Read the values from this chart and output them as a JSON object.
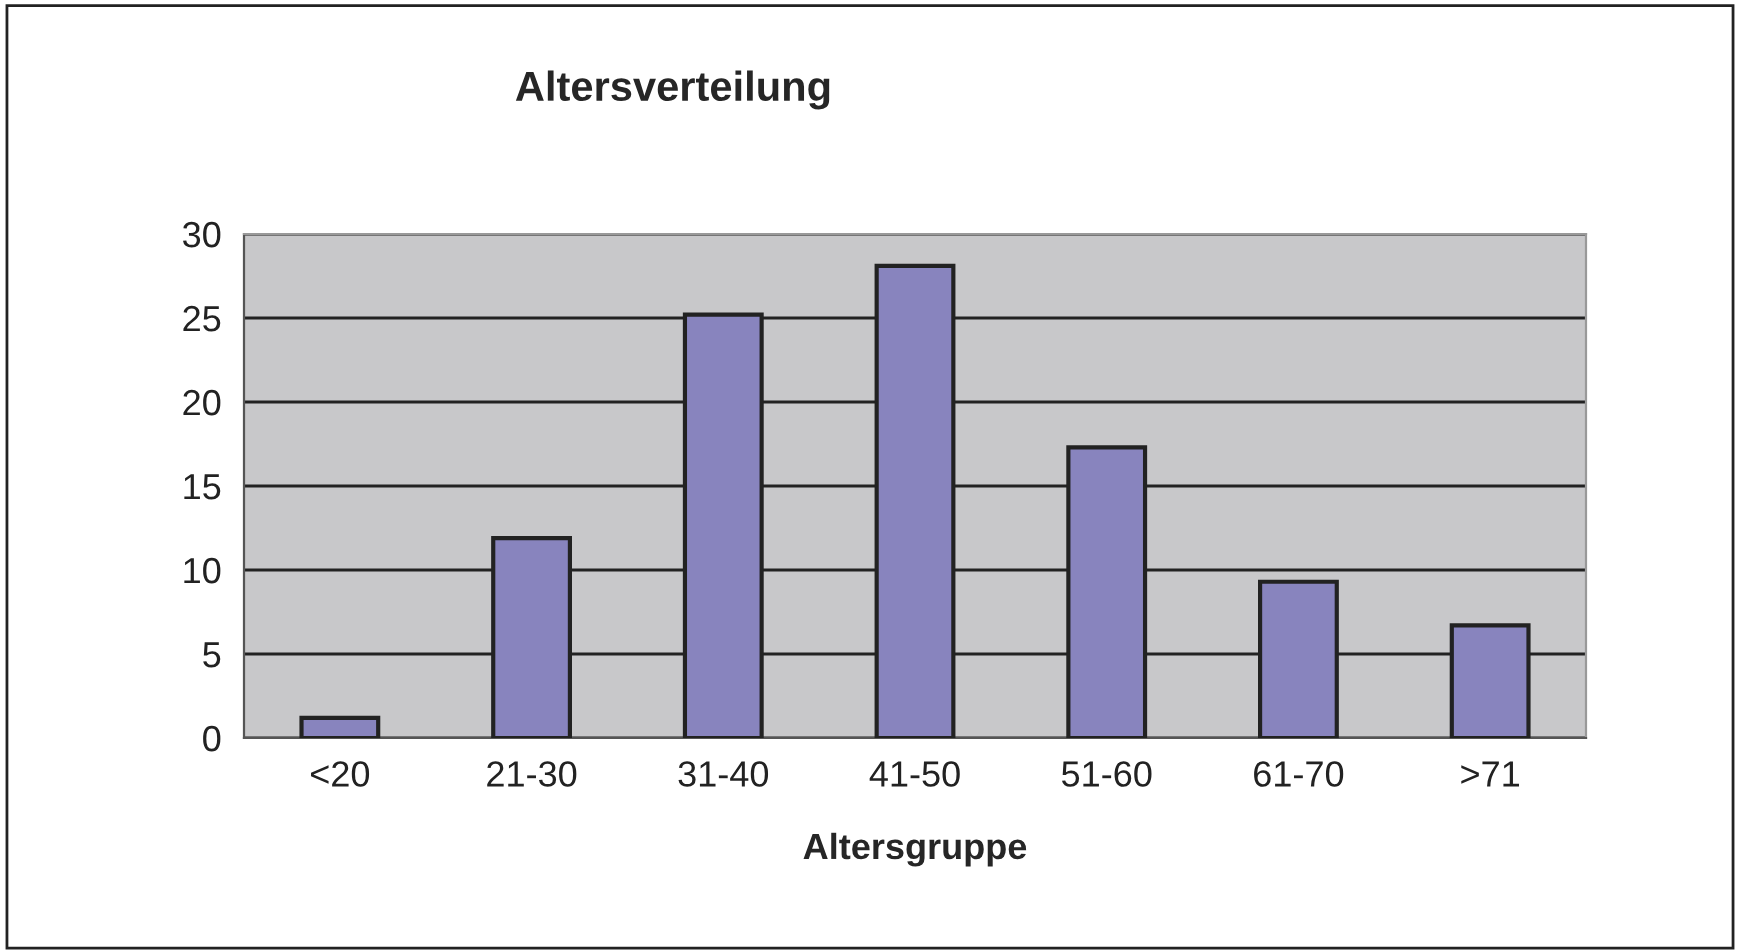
{
  "chart_data": {
    "type": "bar",
    "title": "Altersverteilung",
    "xlabel": "Altersgruppe",
    "categories": [
      "<20",
      "21-30",
      "31-40",
      "41-50",
      "51-60",
      "61-70",
      ">71"
    ],
    "values": [
      1.2,
      11.9,
      25.2,
      28.1,
      17.3,
      9.3,
      6.7
    ],
    "color": "#8884be",
    "ylim": [
      0,
      30
    ],
    "yticks": [
      0,
      5,
      10,
      15,
      20,
      25,
      30
    ],
    "grid": "y"
  }
}
